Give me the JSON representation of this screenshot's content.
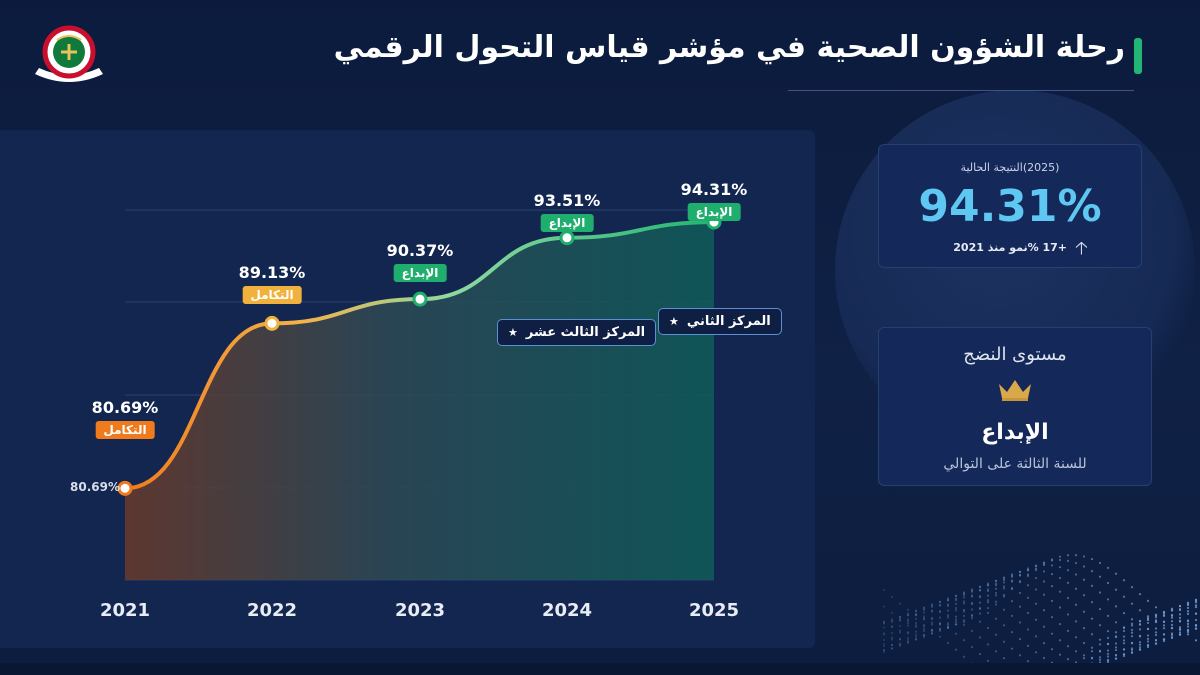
{
  "header": {
    "title": "رحلة الشؤون الصحية في مؤشر قياس التحول الرقمي"
  },
  "colors": {
    "accent_green": "#22b573",
    "badge_orange": "#f07b1d",
    "badge_gold": "#f0b23c",
    "badge_green": "#1fae6e",
    "score_blue": "#5ec7f2",
    "background": "#0f2145"
  },
  "chart_data": {
    "type": "line",
    "x": [
      "2021",
      "2022",
      "2023",
      "2024",
      "2025"
    ],
    "values": [
      80.69,
      89.13,
      90.37,
      93.51,
      94.31
    ],
    "value_labels": [
      "80.69%",
      "89.13%",
      "90.37%",
      "93.51%",
      "94.31%"
    ],
    "level_labels": [
      "التكامل",
      "التكامل",
      "الإبداع",
      "الإبداع",
      "الإبداع"
    ],
    "level_colors": [
      "#f07b1d",
      "#f0b23c",
      "#1fae6e",
      "#1fae6e",
      "#1fae6e"
    ],
    "start_label": "80.69%",
    "ylim": [
      76,
      98
    ],
    "grid": true,
    "rank_annotations": [
      {
        "year": "2024",
        "text": "المركز الثالث عشر"
      },
      {
        "year": "2025",
        "text": "المركز الثاني"
      }
    ]
  },
  "current_score": {
    "caption": "(2025)النتيجة الحالية",
    "value": "94.31%",
    "growth": "+17 %نمو منذ 2021",
    "arrow_icon": "arrow-up-icon"
  },
  "maturity": {
    "title": "مستوى النضج",
    "icon": "crown-icon",
    "level": "الإبداع",
    "subtitle": "للسنة الثالثة على التوالي"
  }
}
